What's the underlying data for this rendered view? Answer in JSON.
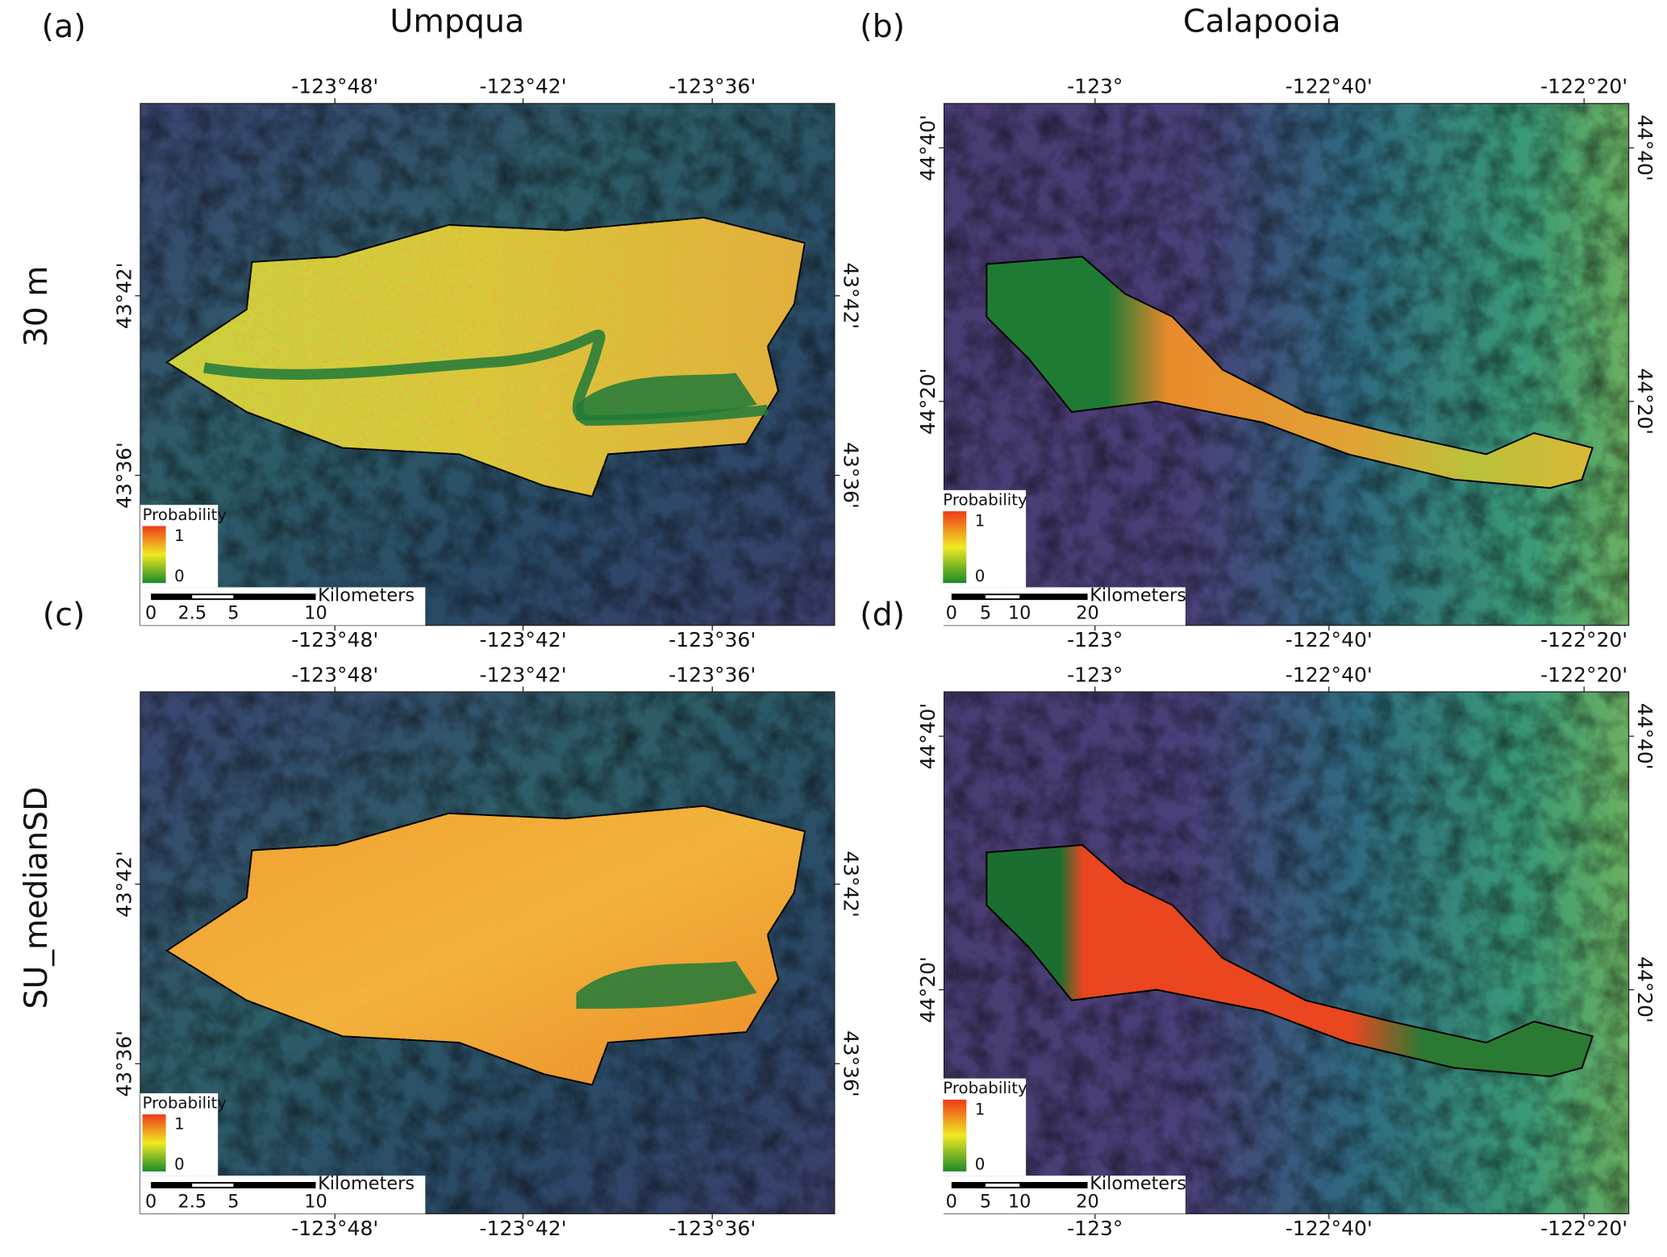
{
  "columns": [
    "Umpqua",
    "Calapooia"
  ],
  "rows": [
    "30 m",
    "SU_medianSD"
  ],
  "panels": [
    {
      "label": "(a)",
      "lon_ticks": [
        "-123°48'",
        "-123°42'",
        "-123°36'"
      ],
      "lat_ticks": [
        "43°42'",
        "43°36'"
      ],
      "legend": {
        "title": "Probability",
        "max": 1,
        "min": 0
      },
      "scale_bar": {
        "unit": "Kilometers",
        "ticks": [
          0,
          2.5,
          5,
          10
        ]
      }
    },
    {
      "label": "(b)",
      "lon_ticks": [
        "-123°",
        "-122°40'",
        "-122°20'"
      ],
      "lat_ticks": [
        "44°40'",
        "44°20'"
      ],
      "legend": {
        "title": "Probability",
        "max": 1,
        "min": 0
      },
      "scale_bar": {
        "unit": "Kilometers",
        "ticks": [
          0,
          5,
          10,
          20
        ]
      }
    },
    {
      "label": "(c)",
      "lon_ticks": [
        "-123°48'",
        "-123°42'",
        "-123°36'"
      ],
      "lat_ticks": [
        "43°42'",
        "43°36'"
      ],
      "legend": {
        "title": "Probability",
        "max": 1,
        "min": 0
      },
      "scale_bar": {
        "unit": "Kilometers",
        "ticks": [
          0,
          2.5,
          5,
          10
        ]
      }
    },
    {
      "label": "(d)",
      "lon_ticks": [
        "-123°",
        "-122°40'",
        "-122°20'"
      ],
      "lat_ticks": [
        "44°40'",
        "44°20'"
      ],
      "legend": {
        "title": "Probability",
        "max": 1,
        "min": 0
      },
      "scale_bar": {
        "unit": "Kilometers",
        "ticks": [
          0,
          5,
          10,
          20
        ]
      }
    }
  ]
}
